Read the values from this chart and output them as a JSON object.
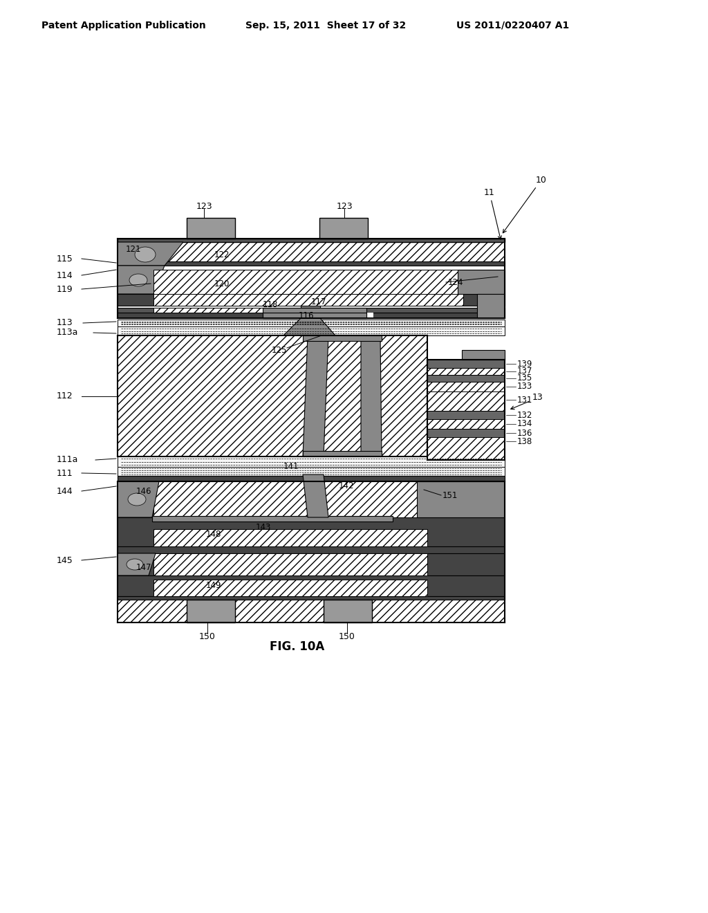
{
  "header_left": "Patent Application Publication",
  "header_mid": "Sep. 15, 2011  Sheet 17 of 32",
  "header_right": "US 2011/0220407 A1",
  "fig_title": "FIG. 10A",
  "bg_color": "#ffffff"
}
